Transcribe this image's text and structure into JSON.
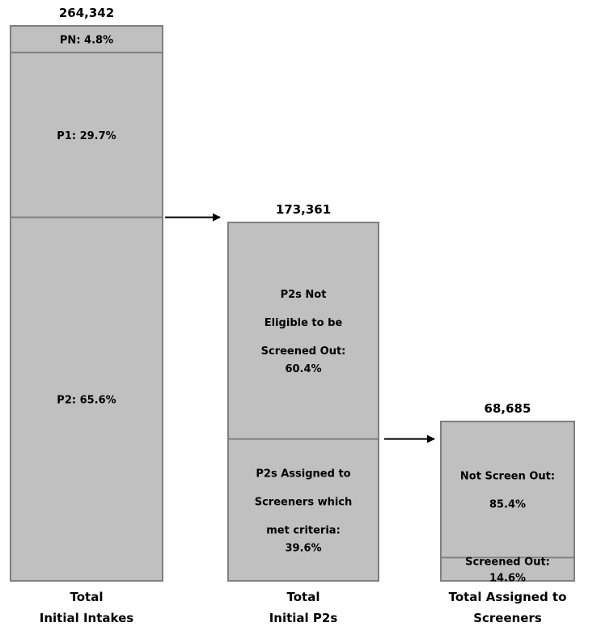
{
  "chart_data": {
    "type": "bar",
    "bars": [
      {
        "total_label": "264,342",
        "total": 264342,
        "caption": [
          "Total",
          "Initial Intakes"
        ],
        "segments": [
          {
            "id": "pn",
            "label": [
              "PN: 4.8%"
            ],
            "pct": 4.8
          },
          {
            "id": "p1",
            "label": [
              "P1: 29.7%"
            ],
            "pct": 29.7
          },
          {
            "id": "p2",
            "label": [
              "P2: 65.6%"
            ],
            "pct": 65.6
          }
        ]
      },
      {
        "total_label": "173,361",
        "total": 173361,
        "caption": [
          "Total",
          "Initial P2s"
        ],
        "segments": [
          {
            "id": "not-eligible",
            "label": [
              "P2s Not",
              "Eligible to be",
              "Screened  Out:",
              "60.4%"
            ],
            "pct": 60.4
          },
          {
            "id": "assigned",
            "label": [
              "P2s Assigned to",
              "Screeners which",
              "met criteria:",
              "39.6%"
            ],
            "pct": 39.6
          }
        ]
      },
      {
        "total_label": "68,685",
        "total": 68685,
        "caption": [
          "Total Assigned to",
          "Screeners"
        ],
        "segments": [
          {
            "id": "not-screen-out",
            "label": [
              "Not Screen Out:",
              "85.4%"
            ],
            "pct": 85.4
          },
          {
            "id": "screened-out",
            "label": [
              "Screened Out:",
              "14.6%"
            ],
            "pct": 14.6
          }
        ]
      }
    ],
    "colors": {
      "fill": "#c0c0c0",
      "stroke": "#7f7f7f",
      "text": "#000000",
      "arrow": "#000000"
    }
  }
}
